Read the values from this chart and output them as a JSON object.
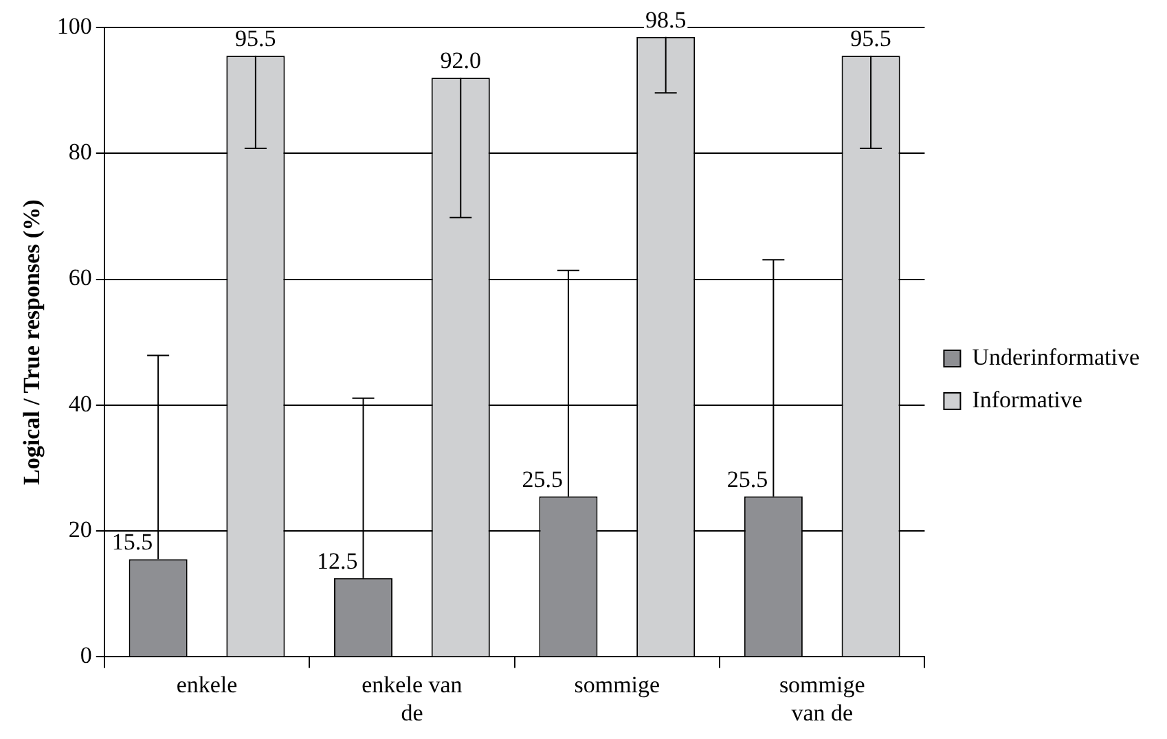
{
  "chart_data": {
    "type": "bar",
    "ylabel": "Logical / True responses (%)",
    "categories": [
      "enkele",
      "enkele van de",
      "sommige",
      "sommige van de"
    ],
    "series": [
      {
        "name": "Underinformative",
        "color": "#8e8f93",
        "values": [
          15.5,
          12.5,
          25.5,
          25.5
        ],
        "errors": [
          [
            15.5,
            47.9
          ],
          [
            12.5,
            41.1
          ],
          [
            25.5,
            61.4
          ],
          [
            25.5,
            63.1
          ]
        ],
        "value_labels": [
          "15.5",
          "12.5",
          "25.5",
          "25.5"
        ]
      },
      {
        "name": "Informative",
        "color": "#cfd0d2",
        "values": [
          95.5,
          92.0,
          98.5,
          95.5
        ],
        "errors": [
          [
            80.8,
            95.5
          ],
          [
            69.8,
            92.0
          ],
          [
            89.6,
            98.5
          ],
          [
            80.8,
            95.5
          ]
        ],
        "value_labels": [
          "95.5",
          "92.0",
          "98.5",
          "95.5"
        ]
      }
    ],
    "ylim": [
      0,
      100
    ],
    "yticks": [
      0,
      20,
      40,
      60,
      80,
      100
    ],
    "grid": "y",
    "legend": "right"
  }
}
